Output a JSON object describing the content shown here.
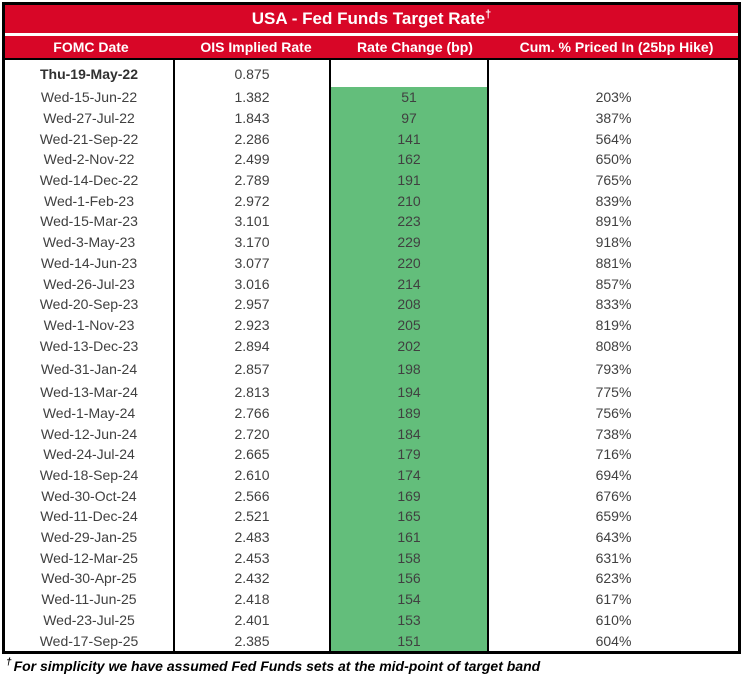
{
  "colors": {
    "header_red": "#D80627",
    "cell_green": "#63BE7B",
    "body_text": "#404040",
    "border_black": "#000000"
  },
  "footnote": {
    "dagger": "†",
    "text": "For simplicity we have assumed Fed Funds sets at the mid-point of target band"
  },
  "chart_data": {
    "type": "table",
    "title": "USA - Fed Funds Target Rate",
    "title_dagger": "†",
    "columns": [
      "FOMC Date",
      "OIS Implied Rate",
      "Rate Change (bp)",
      "Cum. % Priced In (25bp Hike)"
    ],
    "highlight_column": "Rate Change (bp)",
    "highlight_color": "#63BE7B",
    "rows": [
      [
        "Thu-19-May-22",
        "0.875",
        "",
        ""
      ],
      [
        "Wed-15-Jun-22",
        "1.382",
        "51",
        "203%"
      ],
      [
        "Wed-27-Jul-22",
        "1.843",
        "97",
        "387%"
      ],
      [
        "Wed-21-Sep-22",
        "2.286",
        "141",
        "564%"
      ],
      [
        "Wed-2-Nov-22",
        "2.499",
        "162",
        "650%"
      ],
      [
        "Wed-14-Dec-22",
        "2.789",
        "191",
        "765%"
      ],
      [
        "Wed-1-Feb-23",
        "2.972",
        "210",
        "839%"
      ],
      [
        "Wed-15-Mar-23",
        "3.101",
        "223",
        "891%"
      ],
      [
        "Wed-3-May-23",
        "3.170",
        "229",
        "918%"
      ],
      [
        "Wed-14-Jun-23",
        "3.077",
        "220",
        "881%"
      ],
      [
        "Wed-26-Jul-23",
        "3.016",
        "214",
        "857%"
      ],
      [
        "Wed-20-Sep-23",
        "2.957",
        "208",
        "833%"
      ],
      [
        "Wed-1-Nov-23",
        "2.923",
        "205",
        "819%"
      ],
      [
        "Wed-13-Dec-23",
        "2.894",
        "202",
        "808%"
      ],
      [
        "Wed-31-Jan-24",
        "2.857",
        "198",
        "793%"
      ],
      [
        "Wed-13-Mar-24",
        "2.813",
        "194",
        "775%"
      ],
      [
        "Wed-1-May-24",
        "2.766",
        "189",
        "756%"
      ],
      [
        "Wed-12-Jun-24",
        "2.720",
        "184",
        "738%"
      ],
      [
        "Wed-24-Jul-24",
        "2.665",
        "179",
        "716%"
      ],
      [
        "Wed-18-Sep-24",
        "2.610",
        "174",
        "694%"
      ],
      [
        "Wed-30-Oct-24",
        "2.566",
        "169",
        "676%"
      ],
      [
        "Wed-11-Dec-24",
        "2.521",
        "165",
        "659%"
      ],
      [
        "Wed-29-Jan-25",
        "2.483",
        "161",
        "643%"
      ],
      [
        "Wed-12-Mar-25",
        "2.453",
        "158",
        "631%"
      ],
      [
        "Wed-30-Apr-25",
        "2.432",
        "156",
        "623%"
      ],
      [
        "Wed-11-Jun-25",
        "2.418",
        "154",
        "617%"
      ],
      [
        "Wed-23-Jul-25",
        "2.401",
        "153",
        "610%"
      ],
      [
        "Wed-17-Sep-25",
        "2.385",
        "151",
        "604%"
      ]
    ]
  }
}
